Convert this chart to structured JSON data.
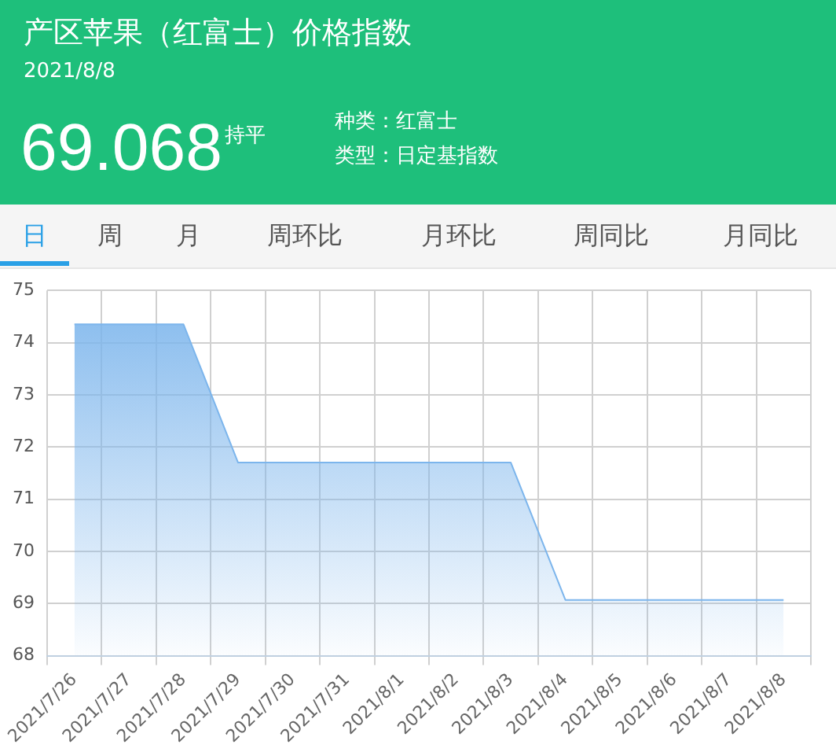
{
  "chart_data": {
    "type": "area",
    "title": "产区苹果（红富士）价格指数",
    "subtitle": "2021/8/8",
    "annotations": [
      "69.068",
      "持平",
      "种类：红富士",
      "类型：日定基指数",
      "日",
      "周",
      "月",
      "周环比",
      "月环比",
      "周同比",
      "月同比"
    ],
    "categories": [
      "2021/7/26",
      "2021/7/27",
      "2021/7/28",
      "2021/7/29",
      "2021/7/30",
      "2021/7/31",
      "2021/8/1",
      "2021/8/2",
      "2021/8/3",
      "2021/8/4",
      "2021/8/5",
      "2021/8/6",
      "2021/8/7",
      "2021/8/8"
    ],
    "series": [
      {
        "color": "#7cb5ec",
        "values": [
          74.35,
          74.35,
          74.35,
          71.7,
          71.7,
          71.7,
          71.7,
          71.7,
          71.7,
          69.068,
          69.068,
          69.068,
          69.068,
          69.068
        ]
      }
    ],
    "ylim": [
      68,
      75
    ],
    "yticks": [
      68,
      69,
      70,
      71,
      72,
      73,
      74,
      75
    ],
    "grid": true,
    "legend": false
  }
}
